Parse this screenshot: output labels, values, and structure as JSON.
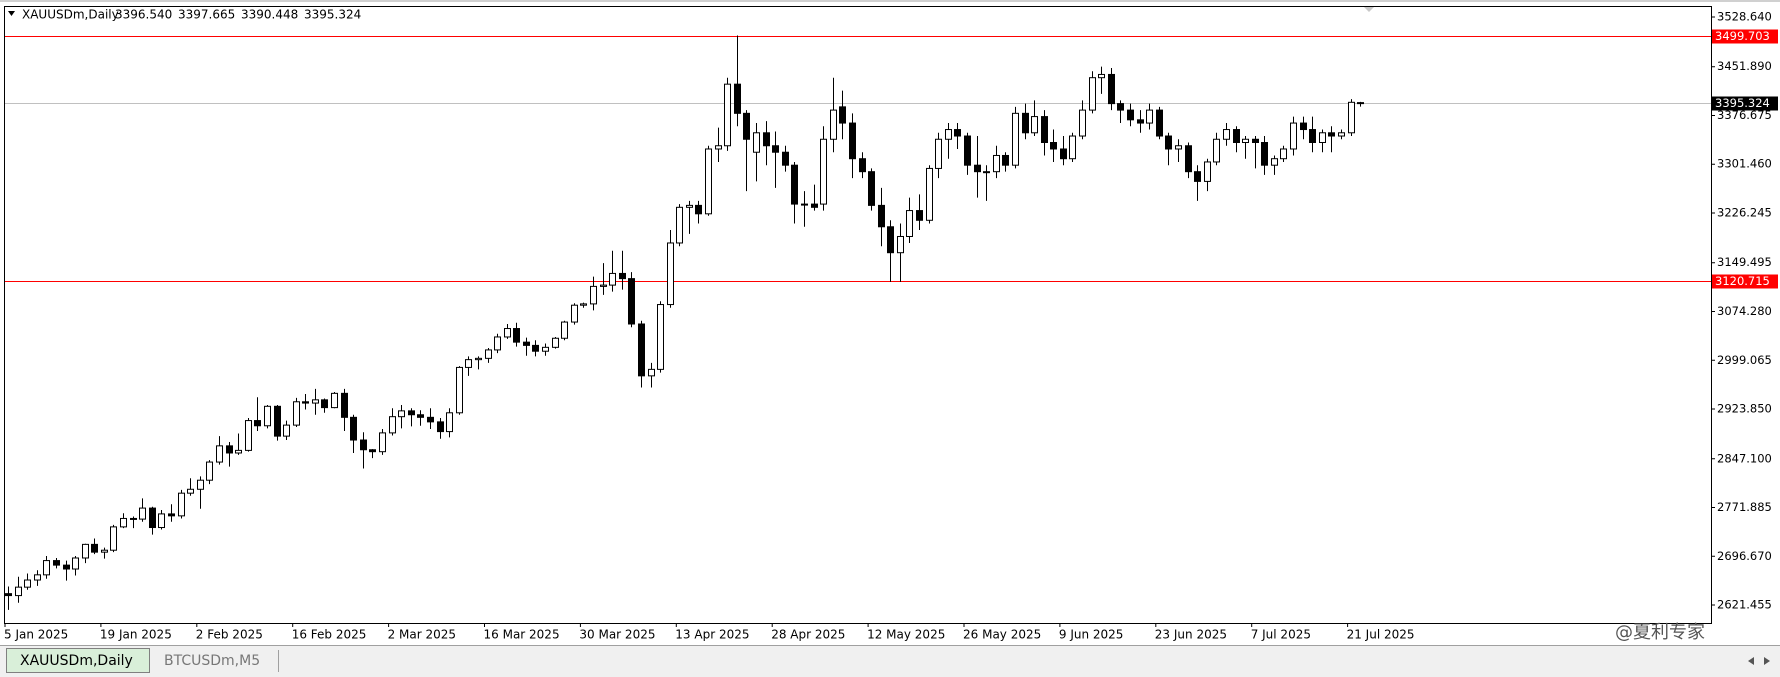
{
  "chart_data": {
    "type": "candlestick",
    "symbol": "XAUUSDm,Daily",
    "last_ohlc_labels": [
      "3396.540",
      "3397.665",
      "3390.448",
      "3395.324"
    ],
    "up_color": "#ffffff",
    "down_color": "#000000",
    "wick_color": "#000000",
    "ylim": [
      2593.7,
      3545.6
    ],
    "yticks": [
      {
        "value": 3528.64,
        "label": "3528.640"
      },
      {
        "value": 3451.89,
        "label": "3451.890"
      },
      {
        "value": 3376.675,
        "label": "3376.675"
      },
      {
        "value": 3301.46,
        "label": "3301.460"
      },
      {
        "value": 3226.245,
        "label": "3226.245"
      },
      {
        "value": 3149.495,
        "label": "3149.495"
      },
      {
        "value": 3074.28,
        "label": "3074.280"
      },
      {
        "value": 2999.065,
        "label": "2999.065"
      },
      {
        "value": 2923.85,
        "label": "2923.850"
      },
      {
        "value": 2847.1,
        "label": "2847.100"
      },
      {
        "value": 2771.885,
        "label": "2771.885"
      },
      {
        "value": 2696.67,
        "label": "2696.670"
      },
      {
        "value": 2621.455,
        "label": "2621.455"
      }
    ],
    "levels": [
      {
        "value": 3499.703,
        "color": "#ff0000",
        "label_bg": "#ff0000"
      },
      {
        "value": 3120.715,
        "color": "#ff0000",
        "label_bg": "#ff0000"
      },
      {
        "value": 3395.324,
        "color": "#c0c0c0",
        "label_bg": "#000000"
      }
    ],
    "categories": [
      "5 Jan 2025",
      null,
      null,
      null,
      null,
      null,
      null,
      null,
      null,
      null,
      "19 Jan 2025",
      null,
      null,
      null,
      null,
      null,
      null,
      null,
      null,
      null,
      "2 Feb 2025",
      null,
      null,
      null,
      null,
      null,
      null,
      null,
      null,
      null,
      "16 Feb 2025",
      null,
      null,
      null,
      null,
      null,
      null,
      null,
      null,
      null,
      "2 Mar 2025",
      null,
      null,
      null,
      null,
      null,
      null,
      null,
      null,
      null,
      "16 Mar 2025",
      null,
      null,
      null,
      null,
      null,
      null,
      null,
      null,
      null,
      "30 Mar 2025",
      null,
      null,
      null,
      null,
      null,
      null,
      null,
      null,
      null,
      "13 Apr 2025",
      null,
      null,
      null,
      null,
      null,
      null,
      null,
      null,
      null,
      "28 Apr 2025",
      null,
      null,
      null,
      null,
      null,
      null,
      null,
      null,
      null,
      "12 May 2025",
      null,
      null,
      null,
      null,
      null,
      null,
      null,
      null,
      null,
      "26 May 2025",
      null,
      null,
      null,
      null,
      null,
      null,
      null,
      null,
      null,
      "9 Jun 2025",
      null,
      null,
      null,
      null,
      null,
      null,
      null,
      null,
      null,
      "23 Jun 2025",
      null,
      null,
      null,
      null,
      null,
      null,
      null,
      null,
      null,
      "7 Jul 2025",
      null,
      null,
      null,
      null,
      null,
      null,
      null,
      null,
      null,
      "21 Jul 2025",
      null
    ],
    "ohlc": [
      [
        2639,
        2650,
        2614,
        2636
      ],
      [
        2636,
        2665,
        2625,
        2649
      ],
      [
        2649,
        2670,
        2645,
        2660
      ],
      [
        2660,
        2675,
        2651,
        2668
      ],
      [
        2668,
        2697,
        2662,
        2690
      ],
      [
        2690,
        2694,
        2678,
        2683
      ],
      [
        2683,
        2690,
        2659,
        2677
      ],
      [
        2677,
        2697,
        2667,
        2694
      ],
      [
        2694,
        2716,
        2686,
        2715
      ],
      [
        2715,
        2724,
        2700,
        2703
      ],
      [
        2703,
        2710,
        2693,
        2706
      ],
      [
        2706,
        2745,
        2703,
        2742
      ],
      [
        2742,
        2763,
        2740,
        2755
      ],
      [
        2755,
        2758,
        2740,
        2754
      ],
      [
        2754,
        2786,
        2750,
        2771
      ],
      [
        2771,
        2773,
        2730,
        2741
      ],
      [
        2741,
        2768,
        2738,
        2762
      ],
      [
        2762,
        2777,
        2750,
        2759
      ],
      [
        2759,
        2799,
        2755,
        2794
      ],
      [
        2794,
        2817,
        2790,
        2800
      ],
      [
        2800,
        2820,
        2770,
        2814
      ],
      [
        2814,
        2845,
        2808,
        2842
      ],
      [
        2842,
        2882,
        2838,
        2867
      ],
      [
        2867,
        2873,
        2835,
        2856
      ],
      [
        2856,
        2886,
        2853,
        2860
      ],
      [
        2860,
        2910,
        2858,
        2906
      ],
      [
        2906,
        2942,
        2890,
        2898
      ],
      [
        2898,
        2930,
        2894,
        2928
      ],
      [
        2928,
        2930,
        2875,
        2882
      ],
      [
        2882,
        2906,
        2876,
        2899
      ],
      [
        2899,
        2941,
        2896,
        2935
      ],
      [
        2935,
        2947,
        2923,
        2933
      ],
      [
        2933,
        2955,
        2915,
        2938
      ],
      [
        2938,
        2940,
        2918,
        2926
      ],
      [
        2926,
        2950,
        2925,
        2948
      ],
      [
        2948,
        2955,
        2890,
        2911
      ],
      [
        2911,
        2915,
        2856,
        2876
      ],
      [
        2876,
        2888,
        2832,
        2861
      ],
      [
        2861,
        2862,
        2848,
        2858
      ],
      [
        2858,
        2893,
        2853,
        2887
      ],
      [
        2887,
        2925,
        2883,
        2912
      ],
      [
        2912,
        2930,
        2894,
        2921
      ],
      [
        2921,
        2925,
        2897,
        2915
      ],
      [
        2915,
        2922,
        2898,
        2911
      ],
      [
        2911,
        2925,
        2893,
        2904
      ],
      [
        2904,
        2910,
        2878,
        2889
      ],
      [
        2889,
        2925,
        2880,
        2918
      ],
      [
        2918,
        2990,
        2915,
        2988
      ],
      [
        2988,
        3005,
        2975,
        3000
      ],
      [
        3000,
        3005,
        2985,
        3002
      ],
      [
        3002,
        3018,
        2995,
        3015
      ],
      [
        3015,
        3040,
        3010,
        3035
      ],
      [
        3035,
        3055,
        3032,
        3048
      ],
      [
        3048,
        3057,
        3020,
        3027
      ],
      [
        3027,
        3034,
        3006,
        3022
      ],
      [
        3022,
        3030,
        3005,
        3013
      ],
      [
        3013,
        3025,
        3006,
        3019
      ],
      [
        3019,
        3035,
        3017,
        3033
      ],
      [
        3033,
        3060,
        3030,
        3058
      ],
      [
        3058,
        3087,
        3054,
        3084
      ],
      [
        3084,
        3088,
        3080,
        3086
      ],
      [
        3086,
        3128,
        3076,
        3113
      ],
      [
        3113,
        3149,
        3100,
        3115
      ],
      [
        3115,
        3168,
        3105,
        3133
      ],
      [
        3133,
        3168,
        3108,
        3125
      ],
      [
        3125,
        3135,
        3050,
        3055
      ],
      [
        3055,
        3060,
        2957,
        2975
      ],
      [
        2975,
        2995,
        2957,
        2985
      ],
      [
        2985,
        3090,
        2980,
        3085
      ],
      [
        3085,
        3200,
        3080,
        3180
      ],
      [
        3180,
        3240,
        3175,
        3235
      ],
      [
        3235,
        3245,
        3194,
        3238
      ],
      [
        3238,
        3245,
        3210,
        3225
      ],
      [
        3225,
        3330,
        3222,
        3325
      ],
      [
        3325,
        3358,
        3305,
        3330
      ],
      [
        3330,
        3435,
        3322,
        3425
      ],
      [
        3425,
        3500,
        3360,
        3380
      ],
      [
        3380,
        3385,
        3260,
        3340
      ],
      [
        3320,
        3365,
        3275,
        3350
      ],
      [
        3350,
        3368,
        3300,
        3330
      ],
      [
        3330,
        3352,
        3265,
        3320
      ],
      [
        3320,
        3330,
        3290,
        3300
      ],
      [
        3300,
        3305,
        3210,
        3240
      ],
      [
        3240,
        3260,
        3205,
        3240
      ],
      [
        3240,
        3270,
        3230,
        3235
      ],
      [
        3240,
        3360,
        3230,
        3340
      ],
      [
        3340,
        3435,
        3320,
        3385
      ],
      [
        3390,
        3415,
        3340,
        3365
      ],
      [
        3365,
        3380,
        3280,
        3310
      ],
      [
        3310,
        3320,
        3280,
        3290
      ],
      [
        3290,
        3295,
        3230,
        3238
      ],
      [
        3238,
        3265,
        3175,
        3205
      ],
      [
        3205,
        3215,
        3120,
        3165
      ],
      [
        3165,
        3210,
        3120,
        3190
      ],
      [
        3190,
        3250,
        3180,
        3230
      ],
      [
        3230,
        3255,
        3200,
        3215
      ],
      [
        3215,
        3300,
        3210,
        3295
      ],
      [
        3295,
        3350,
        3280,
        3340
      ],
      [
        3340,
        3365,
        3310,
        3355
      ],
      [
        3355,
        3365,
        3325,
        3345
      ],
      [
        3345,
        3350,
        3285,
        3300
      ],
      [
        3300,
        3345,
        3250,
        3290
      ],
      [
        3290,
        3300,
        3245,
        3290
      ],
      [
        3290,
        3330,
        3280,
        3315
      ],
      [
        3315,
        3320,
        3290,
        3300
      ],
      [
        3300,
        3390,
        3295,
        3380
      ],
      [
        3380,
        3395,
        3340,
        3350
      ],
      [
        3350,
        3400,
        3345,
        3375
      ],
      [
        3375,
        3385,
        3315,
        3335
      ],
      [
        3335,
        3355,
        3305,
        3325
      ],
      [
        3325,
        3345,
        3300,
        3310
      ],
      [
        3310,
        3350,
        3305,
        3345
      ],
      [
        3345,
        3400,
        3340,
        3385
      ],
      [
        3385,
        3445,
        3380,
        3435
      ],
      [
        3435,
        3452,
        3410,
        3440
      ],
      [
        3440,
        3450,
        3385,
        3395
      ],
      [
        3395,
        3400,
        3365,
        3385
      ],
      [
        3385,
        3395,
        3360,
        3370
      ],
      [
        3370,
        3385,
        3350,
        3365
      ],
      [
        3365,
        3395,
        3355,
        3385
      ],
      [
        3385,
        3390,
        3340,
        3345
      ],
      [
        3345,
        3350,
        3300,
        3325
      ],
      [
        3325,
        3340,
        3305,
        3330
      ],
      [
        3330,
        3335,
        3280,
        3290
      ],
      [
        3290,
        3300,
        3245,
        3275
      ],
      [
        3275,
        3310,
        3260,
        3305
      ],
      [
        3305,
        3350,
        3300,
        3340
      ],
      [
        3340,
        3365,
        3330,
        3355
      ],
      [
        3355,
        3360,
        3320,
        3335
      ],
      [
        3335,
        3345,
        3310,
        3340
      ],
      [
        3340,
        3345,
        3295,
        3335
      ],
      [
        3335,
        3345,
        3285,
        3300
      ],
      [
        3300,
        3315,
        3285,
        3310
      ],
      [
        3310,
        3330,
        3305,
        3325
      ],
      [
        3325,
        3375,
        3315,
        3365
      ],
      [
        3365,
        3375,
        3340,
        3355
      ],
      [
        3355,
        3375,
        3320,
        3335
      ],
      [
        3335,
        3355,
        3320,
        3350
      ],
      [
        3350,
        3360,
        3320,
        3345
      ],
      [
        3345,
        3355,
        3340,
        3350
      ],
      [
        3350,
        3402,
        3345,
        3397
      ],
      [
        3396.54,
        3397.665,
        3390.448,
        3395.324
      ]
    ]
  },
  "tabs": [
    "XAUUSDm,Daily",
    "BTCUSDm,M5"
  ],
  "watermark": "@夏利专家"
}
